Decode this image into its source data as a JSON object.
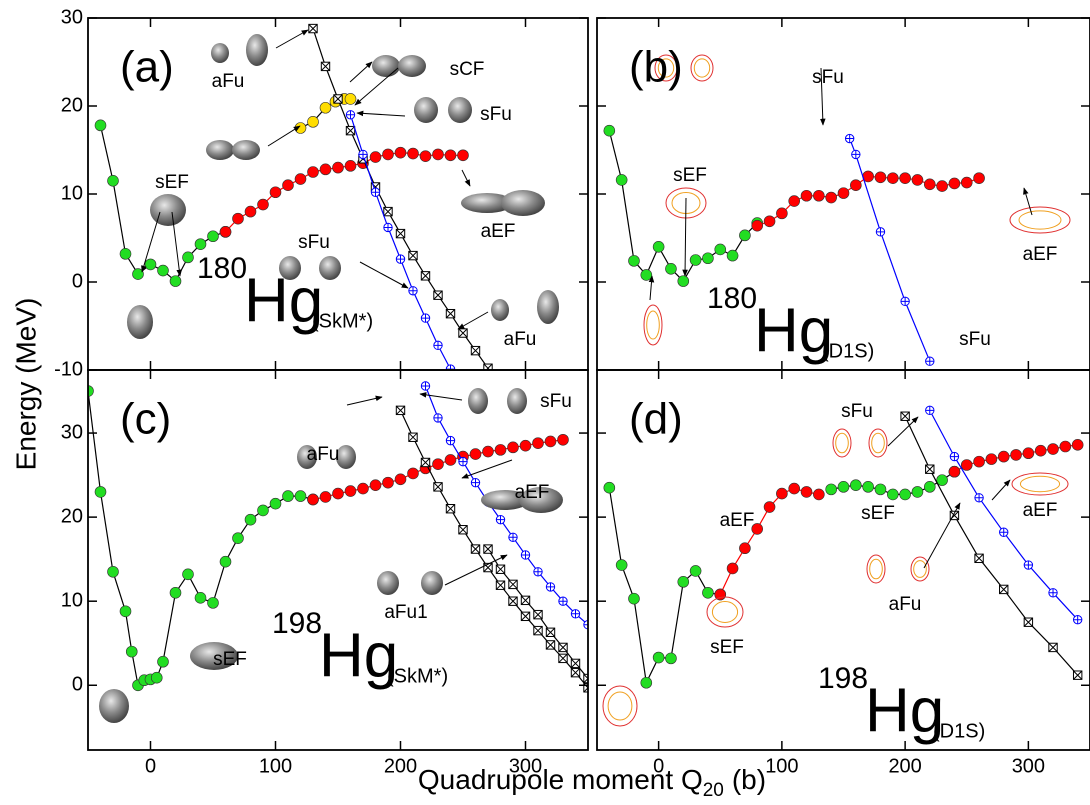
{
  "chart_data": [
    {
      "type": "line",
      "label": "(a)",
      "mass": "180",
      "element": "Hg",
      "model": "(SkM*)",
      "ylabel": "Energy (MeV)",
      "xlim": [
        -50,
        350
      ],
      "ylim": [
        -10,
        30
      ],
      "xticks": [
        0,
        100,
        200,
        300
      ],
      "yticks": [
        -10,
        0,
        10,
        20,
        30
      ],
      "series": [
        {
          "line_color": "#000000",
          "marker": "circle",
          "color": "#22dd22",
          "x": [
            -40,
            -30,
            -20,
            -10,
            0,
            10,
            20,
            30,
            40,
            50,
            60
          ],
          "values": [
            17.8,
            11.5,
            3.2,
            0.9,
            2.0,
            1.3,
            0.1,
            2.8,
            4.3,
            5.2,
            5.7
          ]
        },
        {
          "line_color": "#ff0000",
          "marker": "circle",
          "color": "#ff0000",
          "x": [
            60,
            70,
            80,
            90,
            100,
            110,
            120,
            130,
            140,
            150,
            160,
            170,
            180,
            190,
            200,
            210,
            220,
            230,
            240,
            250
          ],
          "values": [
            5.7,
            7.2,
            8.0,
            8.8,
            10.2,
            11.0,
            11.7,
            12.5,
            12.8,
            13.0,
            13.2,
            13.5,
            14.2,
            14.5,
            14.7,
            14.6,
            14.3,
            14.5,
            14.4,
            14.4
          ]
        },
        {
          "line_color": "#000000",
          "marker": "circle",
          "color": "#ffdd00",
          "x": [
            120,
            130,
            140,
            148,
            155,
            160
          ],
          "values": [
            17.5,
            18.2,
            19.8,
            20.5,
            20.8,
            20.8
          ]
        },
        {
          "line_color": "#000000",
          "marker": "crossed-square",
          "color": "#000000",
          "x": [
            130,
            140,
            150,
            160,
            170,
            180,
            190,
            200,
            210,
            220,
            230,
            240,
            250,
            260,
            270
          ],
          "values": [
            28.8,
            24.5,
            20.8,
            17.2,
            14.0,
            10.8,
            8.0,
            5.5,
            3.0,
            0.7,
            -1.5,
            -3.6,
            -5.8,
            -7.8,
            -9.8
          ]
        },
        {
          "line_color": "#0000ff",
          "marker": "crossed-circle",
          "color": "#0000ff",
          "x": [
            160,
            170,
            180,
            190,
            200,
            210,
            220,
            230,
            240
          ],
          "values": [
            19.0,
            14.5,
            10.2,
            6.2,
            2.6,
            -1.0,
            -4.1,
            -7.2,
            -9.9
          ]
        }
      ],
      "annotations": [
        "aFu",
        "sCF",
        "sFu",
        "sEF",
        "aEF",
        "sFu",
        "aFu"
      ]
    },
    {
      "type": "line",
      "label": "(b)",
      "mass": "180",
      "element": "Hg",
      "model": "(D1S)",
      "xlim": [
        -50,
        350
      ],
      "ylim": [
        -10,
        30
      ],
      "xticks": [
        0,
        100,
        200,
        300
      ],
      "yticks": [
        -10,
        0,
        10,
        20,
        30
      ],
      "series": [
        {
          "line_color": "#000000",
          "marker": "circle",
          "color": "#22dd22",
          "x": [
            -40,
            -30,
            -20,
            -10,
            0,
            10,
            20,
            30,
            40,
            50,
            60,
            70,
            80
          ],
          "values": [
            17.2,
            11.6,
            2.4,
            0.8,
            4.0,
            1.5,
            0.1,
            2.5,
            2.7,
            3.7,
            3.0,
            5.3,
            6.7
          ]
        },
        {
          "line_color": "#ff0000",
          "marker": "circle",
          "color": "#ff0000",
          "x": [
            80,
            90,
            100,
            110,
            120,
            130,
            140,
            150,
            160,
            170,
            180,
            190,
            200,
            210,
            220,
            230,
            240,
            250,
            260
          ],
          "values": [
            6.4,
            6.9,
            7.8,
            9.2,
            9.8,
            9.8,
            9.6,
            10.1,
            11.0,
            12.0,
            11.9,
            11.8,
            11.8,
            11.6,
            11.1,
            10.9,
            11.2,
            11.3,
            11.8
          ]
        },
        {
          "line_color": "#0000ff",
          "marker": "crossed-circle",
          "color": "#0000ff",
          "x": [
            155,
            160,
            180,
            200,
            220
          ],
          "values": [
            16.3,
            14.5,
            5.7,
            -2.2,
            -9.0
          ]
        }
      ],
      "annotations": [
        "sFu",
        "sEF",
        "aEF",
        "sFu"
      ]
    },
    {
      "type": "line",
      "label": "(c)",
      "mass": "198",
      "element": "Hg",
      "model": "(SkM*)",
      "xlabel": "Quadrupole moment Q",
      "xlabel_sub": "20",
      "xlabel_unit": "(b)",
      "xlim": [
        -50,
        350
      ],
      "ylim": [
        -7.7,
        37.5
      ],
      "xticks": [
        0,
        100,
        200,
        300
      ],
      "yticks": [
        0,
        10,
        20,
        30
      ],
      "series": [
        {
          "line_color": "#000000",
          "marker": "circle",
          "color": "#22dd22",
          "x": [
            -50,
            -40,
            -30,
            -20,
            -15,
            -10,
            -5,
            0,
            5,
            10,
            20,
            30,
            40,
            50,
            60,
            70,
            80,
            90,
            100,
            110,
            120,
            130
          ],
          "values": [
            35.0,
            23.0,
            13.5,
            8.8,
            4.0,
            0.0,
            0.6,
            0.7,
            0.9,
            2.8,
            11.0,
            13.2,
            10.4,
            9.8,
            14.7,
            17.5,
            19.7,
            20.8,
            21.6,
            22.5,
            22.5,
            22.1
          ]
        },
        {
          "line_color": "#ff0000",
          "marker": "circle",
          "color": "#ff0000",
          "x": [
            130,
            140,
            150,
            160,
            170,
            180,
            190,
            200,
            210,
            220,
            230,
            240,
            250,
            260,
            270,
            280,
            290,
            300,
            310,
            320,
            330
          ],
          "values": [
            22.1,
            22.4,
            22.8,
            23.1,
            23.4,
            23.8,
            24.1,
            24.5,
            25.2,
            25.8,
            26.3,
            26.8,
            27.2,
            27.5,
            27.8,
            28.0,
            28.3,
            28.5,
            28.8,
            29.0,
            29.2
          ]
        },
        {
          "line_color": "#000000",
          "marker": "crossed-square",
          "color": "#000000",
          "x": [
            200,
            210,
            220,
            230,
            240,
            250,
            260,
            270,
            280,
            290,
            300,
            310,
            320,
            330,
            340,
            350
          ],
          "values": [
            32.7,
            29.5,
            26.5,
            23.6,
            21.0,
            18.5,
            16.2,
            14.0,
            11.9,
            10.0,
            8.2,
            6.5,
            4.8,
            3.2,
            1.5,
            -0.3
          ]
        },
        {
          "line_color": "#000000",
          "marker": "crossed-square",
          "color": "#000000",
          "x": [
            270,
            280,
            290,
            300,
            310,
            320,
            330,
            340,
            350
          ],
          "values": [
            16.2,
            13.8,
            12.0,
            10.1,
            8.4,
            6.3,
            4.5,
            2.6,
            0.8
          ]
        },
        {
          "line_color": "#0000ff",
          "marker": "crossed-circle",
          "color": "#0000ff",
          "x": [
            220,
            230,
            240,
            250,
            260,
            270,
            280,
            290,
            300,
            310,
            320,
            330,
            340,
            350
          ],
          "values": [
            35.6,
            31.8,
            29.1,
            26.6,
            24.1,
            21.8,
            19.7,
            17.6,
            15.5,
            13.5,
            11.7,
            10.0,
            8.5,
            7.2
          ]
        }
      ],
      "annotations": [
        "aFu",
        "sFu",
        "aEF",
        "aFu1",
        "sEF"
      ]
    },
    {
      "type": "line",
      "label": "(d)",
      "mass": "198",
      "element": "Hg",
      "model": "(D1S)",
      "xlim": [
        -50,
        350
      ],
      "ylim": [
        -7.7,
        37.5
      ],
      "xticks": [
        0,
        100,
        200,
        300
      ],
      "yticks": [
        0,
        10,
        20,
        30
      ],
      "series": [
        {
          "line_color": "#000000",
          "marker": "circle",
          "color": "#22dd22",
          "x": [
            -40,
            -30,
            -20,
            -10,
            0,
            10,
            20,
            30,
            40,
            50
          ],
          "values": [
            23.5,
            14.3,
            10.3,
            0.3,
            3.3,
            3.2,
            12.3,
            13.6,
            11.0,
            10.8
          ]
        },
        {
          "line_color": "#ff0000",
          "marker": "circle",
          "color": "#ff0000",
          "x": [
            50,
            60,
            70,
            80,
            90,
            100,
            110,
            120,
            130
          ],
          "values": [
            10.8,
            13.9,
            16.3,
            18.6,
            21.2,
            22.8,
            23.4,
            23.0,
            22.7
          ]
        },
        {
          "line_color": "#000000",
          "marker": "circle",
          "color": "#22dd22",
          "x": [
            140,
            150,
            160,
            170,
            180,
            190,
            200,
            210,
            220,
            230,
            240
          ],
          "values": [
            23.3,
            23.6,
            23.8,
            23.6,
            23.3,
            22.7,
            22.7,
            23.0,
            23.6,
            24.4,
            25.4
          ]
        },
        {
          "line_color": "#ff0000",
          "marker": "circle",
          "color": "#ff0000",
          "x": [
            240,
            250,
            260,
            270,
            280,
            290,
            300,
            310,
            320,
            330,
            340
          ],
          "values": [
            25.4,
            26.2,
            26.6,
            26.9,
            27.2,
            27.4,
            27.6,
            27.9,
            28.1,
            28.4,
            28.6
          ]
        },
        {
          "line_color": "#000000",
          "marker": "crossed-square",
          "color": "#000000",
          "x": [
            200,
            220,
            240,
            260,
            280,
            300,
            320,
            340
          ],
          "values": [
            32.0,
            25.7,
            20.2,
            15.1,
            11.4,
            7.5,
            4.5,
            1.2
          ]
        },
        {
          "line_color": "#0000ff",
          "marker": "crossed-circle",
          "color": "#0000ff",
          "x": [
            220,
            240,
            260,
            280,
            300,
            320,
            340
          ],
          "values": [
            32.7,
            27.2,
            22.3,
            18.2,
            14.3,
            11.0,
            7.8
          ]
        }
      ],
      "annotations": [
        "sFu",
        "aEF",
        "sEF",
        "aEF",
        "aFu",
        "sEF"
      ]
    }
  ]
}
